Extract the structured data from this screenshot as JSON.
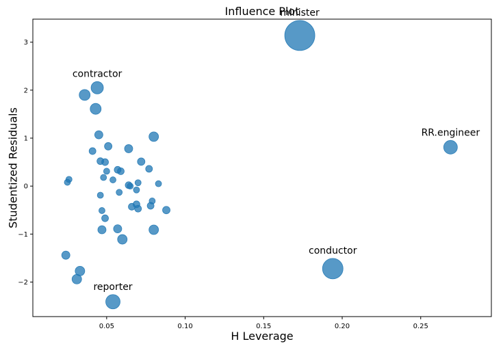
{
  "chart_data": {
    "type": "scatter",
    "title": "Influence Plot",
    "xlabel": "H Leverage",
    "ylabel": "Studentized Residuals",
    "xlim": [
      0.003,
      0.295
    ],
    "ylim": [
      -2.72,
      3.48
    ],
    "xticks": [
      0.05,
      0.1,
      0.15,
      0.2,
      0.25
    ],
    "xtick_labels": [
      "0.05",
      "0.10",
      "0.15",
      "0.20",
      "0.25"
    ],
    "yticks": [
      -2,
      -1,
      0,
      1,
      2,
      3
    ],
    "ytick_labels": [
      "−2",
      "−1",
      "0",
      "1",
      "2",
      "3"
    ],
    "grid": false,
    "marker_color": "#1f77b4",
    "marker_alpha": 0.75,
    "size_note": "bubble radius in px",
    "points": [
      {
        "x": 0.173,
        "y": 3.14,
        "r": 22,
        "label": "minister"
      },
      {
        "x": 0.044,
        "y": 2.05,
        "r": 9,
        "label": "contractor"
      },
      {
        "x": 0.036,
        "y": 1.9,
        "r": 8
      },
      {
        "x": 0.043,
        "y": 1.61,
        "r": 8
      },
      {
        "x": 0.269,
        "y": 0.81,
        "r": 10,
        "label": "RR.engineer"
      },
      {
        "x": 0.045,
        "y": 1.07,
        "r": 6
      },
      {
        "x": 0.08,
        "y": 1.03,
        "r": 7
      },
      {
        "x": 0.051,
        "y": 0.83,
        "r": 5.5
      },
      {
        "x": 0.064,
        "y": 0.78,
        "r": 6
      },
      {
        "x": 0.041,
        "y": 0.73,
        "r": 5
      },
      {
        "x": 0.046,
        "y": 0.52,
        "r": 5
      },
      {
        "x": 0.049,
        "y": 0.5,
        "r": 5
      },
      {
        "x": 0.072,
        "y": 0.51,
        "r": 5.5
      },
      {
        "x": 0.077,
        "y": 0.36,
        "r": 5
      },
      {
        "x": 0.057,
        "y": 0.34,
        "r": 5
      },
      {
        "x": 0.059,
        "y": 0.31,
        "r": 5
      },
      {
        "x": 0.05,
        "y": 0.31,
        "r": 4.5
      },
      {
        "x": 0.048,
        "y": 0.18,
        "r": 4.5
      },
      {
        "x": 0.054,
        "y": 0.13,
        "r": 4.5
      },
      {
        "x": 0.026,
        "y": 0.14,
        "r": 4.5
      },
      {
        "x": 0.025,
        "y": 0.08,
        "r": 4.5
      },
      {
        "x": 0.07,
        "y": 0.07,
        "r": 4.5
      },
      {
        "x": 0.083,
        "y": 0.05,
        "r": 4.5
      },
      {
        "x": 0.064,
        "y": 0.02,
        "r": 5
      },
      {
        "x": 0.065,
        "y": 0.0,
        "r": 4.5
      },
      {
        "x": 0.069,
        "y": -0.08,
        "r": 4.5
      },
      {
        "x": 0.058,
        "y": -0.13,
        "r": 4.5
      },
      {
        "x": 0.046,
        "y": -0.19,
        "r": 4.5
      },
      {
        "x": 0.079,
        "y": -0.31,
        "r": 4.5
      },
      {
        "x": 0.069,
        "y": -0.38,
        "r": 5
      },
      {
        "x": 0.078,
        "y": -0.41,
        "r": 5
      },
      {
        "x": 0.066,
        "y": -0.43,
        "r": 5
      },
      {
        "x": 0.07,
        "y": -0.47,
        "r": 5
      },
      {
        "x": 0.088,
        "y": -0.5,
        "r": 5.5
      },
      {
        "x": 0.047,
        "y": -0.51,
        "r": 4.5
      },
      {
        "x": 0.049,
        "y": -0.67,
        "r": 5
      },
      {
        "x": 0.057,
        "y": -0.89,
        "r": 6
      },
      {
        "x": 0.047,
        "y": -0.91,
        "r": 6
      },
      {
        "x": 0.08,
        "y": -0.91,
        "r": 7
      },
      {
        "x": 0.06,
        "y": -1.11,
        "r": 7
      },
      {
        "x": 0.194,
        "y": -1.72,
        "r": 15,
        "label": "conductor"
      },
      {
        "x": 0.024,
        "y": -1.44,
        "r": 6
      },
      {
        "x": 0.033,
        "y": -1.77,
        "r": 7
      },
      {
        "x": 0.031,
        "y": -1.94,
        "r": 7
      },
      {
        "x": 0.054,
        "y": -2.41,
        "r": 10.5,
        "label": "reporter"
      }
    ]
  }
}
